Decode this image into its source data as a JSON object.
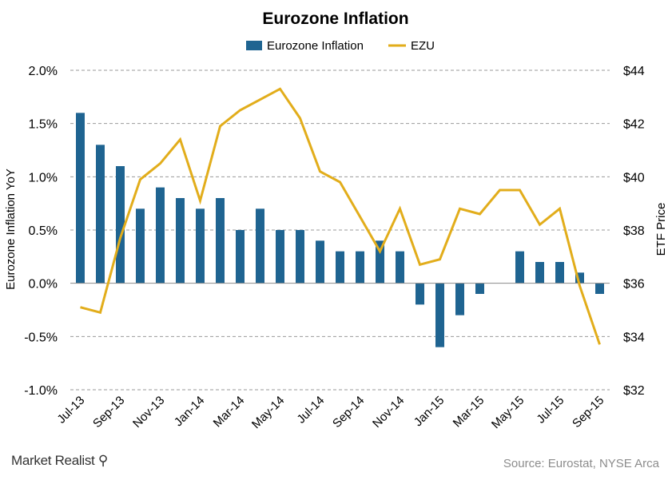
{
  "chart_data": {
    "type": "bar+line",
    "title": "Eurozone Inflation",
    "categories": [
      "Jul-13",
      "Aug-13",
      "Sep-13",
      "Oct-13",
      "Nov-13",
      "Dec-13",
      "Jan-14",
      "Feb-14",
      "Mar-14",
      "Apr-14",
      "May-14",
      "Jun-14",
      "Jul-14",
      "Aug-14",
      "Sep-14",
      "Oct-14",
      "Nov-14",
      "Dec-14",
      "Jan-15",
      "Feb-15",
      "Mar-15",
      "Apr-15",
      "May-15",
      "Jun-15",
      "Jul-15",
      "Aug-15",
      "Sep-15"
    ],
    "x_tick_labels": [
      "Jul-13",
      "Sep-13",
      "Nov-13",
      "Jan-14",
      "Mar-14",
      "May-14",
      "Jul-14",
      "Sep-14",
      "Nov-14",
      "Jan-15",
      "Mar-15",
      "May-15",
      "Jul-15",
      "Sep-15"
    ],
    "series": [
      {
        "name": "Eurozone Inflation",
        "type": "bar",
        "axis": "left",
        "color": "#1f6491",
        "values": [
          1.6,
          1.3,
          1.1,
          0.7,
          0.9,
          0.8,
          0.7,
          0.8,
          0.5,
          0.7,
          0.5,
          0.5,
          0.4,
          0.3,
          0.3,
          0.4,
          0.3,
          -0.2,
          -0.6,
          -0.3,
          -0.1,
          0.0,
          0.3,
          0.2,
          0.2,
          0.1,
          -0.1
        ]
      },
      {
        "name": "EZU",
        "type": "line",
        "axis": "right",
        "color": "#e2ad1b",
        "values": [
          35.1,
          34.9,
          37.7,
          39.9,
          40.5,
          41.4,
          39.1,
          41.9,
          42.5,
          42.9,
          43.3,
          42.2,
          40.2,
          39.8,
          38.5,
          37.2,
          38.8,
          36.7,
          36.9,
          38.8,
          38.6,
          39.5,
          39.5,
          38.2,
          38.8,
          35.9,
          33.7
        ]
      }
    ],
    "ylabel": "Eurozone Inflation YoY",
    "y2label": "ETF Price",
    "ylim": [
      -1.0,
      2.0
    ],
    "y2lim": [
      32,
      44
    ],
    "yticks": [
      "2.0%",
      "1.5%",
      "1.0%",
      "0.5%",
      "0.0%",
      "-0.5%",
      "-1.0%"
    ],
    "y2ticks": [
      "$44",
      "$42",
      "$40",
      "$38",
      "$36",
      "$34",
      "$32"
    ],
    "grid": true,
    "legend": "top-center"
  },
  "footer": {
    "brand": "Market Realist",
    "source": "Source: Eurostat, NYSE Arca"
  }
}
